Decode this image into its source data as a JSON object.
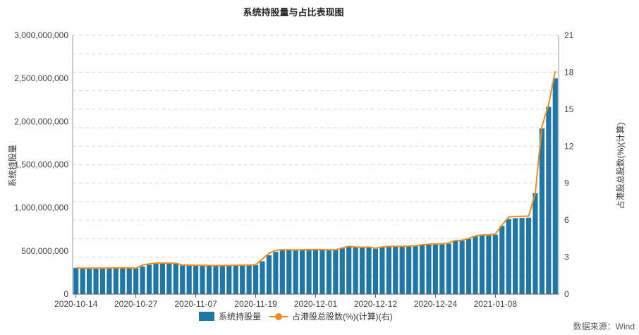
{
  "chart_data": {
    "type": "bar",
    "title": "系统持股量与占比表现图",
    "ylabel_left": "系统持股量",
    "ylabel_right": "占港股总股数(%)(计算)",
    "ylim_left": [
      0,
      3000000000
    ],
    "ylim_right": [
      0,
      21
    ],
    "yticks_left": [
      "0",
      "500,000,000",
      "1,000,000,000",
      "1,500,000,000",
      "2,000,000,000",
      "2,500,000,000",
      "3,000,000,000"
    ],
    "yticks_right": [
      "0",
      "3",
      "6",
      "9",
      "12",
      "15",
      "18",
      "21"
    ],
    "xtick_labels": [
      "2020-10-14",
      "2020-10-27",
      "2020-11-07",
      "2020-11-19",
      "2020-12-01",
      "2020-12-12",
      "2020-12-24",
      "2021-01-08"
    ],
    "xtick_indices": [
      0,
      9,
      18,
      27,
      36,
      45,
      54,
      63
    ],
    "grid": true,
    "legend_position": "bottom",
    "source": "数据来源：Wind",
    "colors": {
      "bar": "#1f77a6",
      "line": "#f08c1e",
      "grid": "#d9d9d9"
    },
    "series": [
      {
        "name": "系统持股量",
        "kind": "bar",
        "axis": "left",
        "values": [
          305000000,
          302000000,
          300000000,
          301000000,
          302000000,
          303000000,
          304000000,
          305000000,
          304000000,
          300000000,
          320000000,
          340000000,
          355000000,
          358000000,
          357000000,
          356000000,
          332000000,
          333000000,
          330000000,
          328000000,
          329000000,
          328000000,
          327000000,
          329000000,
          330000000,
          331000000,
          332000000,
          335000000,
          380000000,
          450000000,
          490000000,
          510000000,
          512000000,
          508000000,
          510000000,
          512000000,
          514000000,
          512000000,
          510000000,
          511000000,
          530000000,
          548000000,
          540000000,
          538000000,
          540000000,
          525000000,
          540000000,
          548000000,
          550000000,
          552000000,
          554000000,
          556000000,
          570000000,
          575000000,
          576000000,
          578000000,
          585000000,
          615000000,
          618000000,
          640000000,
          670000000,
          678000000,
          680000000,
          690000000,
          790000000,
          870000000,
          880000000,
          882000000,
          885000000,
          1170000000,
          1920000000,
          2170000000,
          2500000000
        ]
      },
      {
        "name": "占港股总股数(%)(计算)(右)",
        "kind": "line",
        "axis": "right",
        "values": [
          2.12,
          2.1,
          2.1,
          2.11,
          2.11,
          2.12,
          2.13,
          2.14,
          2.13,
          2.1,
          2.35,
          2.45,
          2.52,
          2.52,
          2.51,
          2.5,
          2.35,
          2.36,
          2.34,
          2.33,
          2.33,
          2.32,
          2.32,
          2.33,
          2.34,
          2.35,
          2.35,
          2.38,
          2.85,
          3.3,
          3.55,
          3.6,
          3.6,
          3.58,
          3.6,
          3.61,
          3.62,
          3.61,
          3.59,
          3.6,
          3.75,
          3.88,
          3.82,
          3.8,
          3.82,
          3.72,
          3.82,
          3.87,
          3.88,
          3.88,
          3.9,
          3.92,
          4.0,
          4.05,
          4.06,
          4.08,
          4.15,
          4.35,
          4.37,
          4.52,
          4.72,
          4.8,
          4.8,
          4.88,
          5.6,
          6.25,
          6.3,
          6.31,
          6.32,
          8.2,
          13.6,
          15.4,
          18.1
        ]
      }
    ]
  }
}
